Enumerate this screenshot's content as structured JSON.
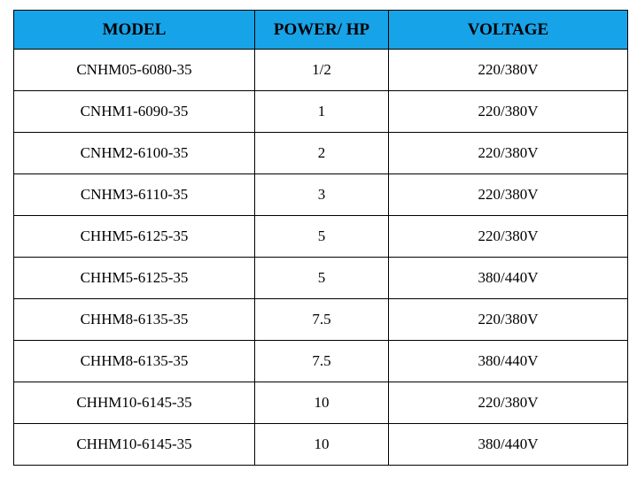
{
  "table": {
    "header": [
      "MODEL",
      "POWER/ HP",
      "VOLTAGE"
    ],
    "rows": [
      [
        "CNHM05-6080-35",
        "1/2",
        "220/380V"
      ],
      [
        "CNHM1-6090-35",
        "1",
        "220/380V"
      ],
      [
        "CNHM2-6100-35",
        "2",
        "220/380V"
      ],
      [
        "CNHM3-6110-35",
        "3",
        "220/380V"
      ],
      [
        "CHHM5-6125-35",
        "5",
        "220/380V"
      ],
      [
        "CHHM5-6125-35",
        "5",
        "380/440V"
      ],
      [
        "CHHM8-6135-35",
        "7.5",
        "220/380V"
      ],
      [
        "CHHM8-6135-35",
        "7.5",
        "380/440V"
      ],
      [
        "CHHM10-6145-35",
        "10",
        "220/380V"
      ],
      [
        "CHHM10-6145-35",
        "10",
        "380/440V"
      ]
    ]
  }
}
